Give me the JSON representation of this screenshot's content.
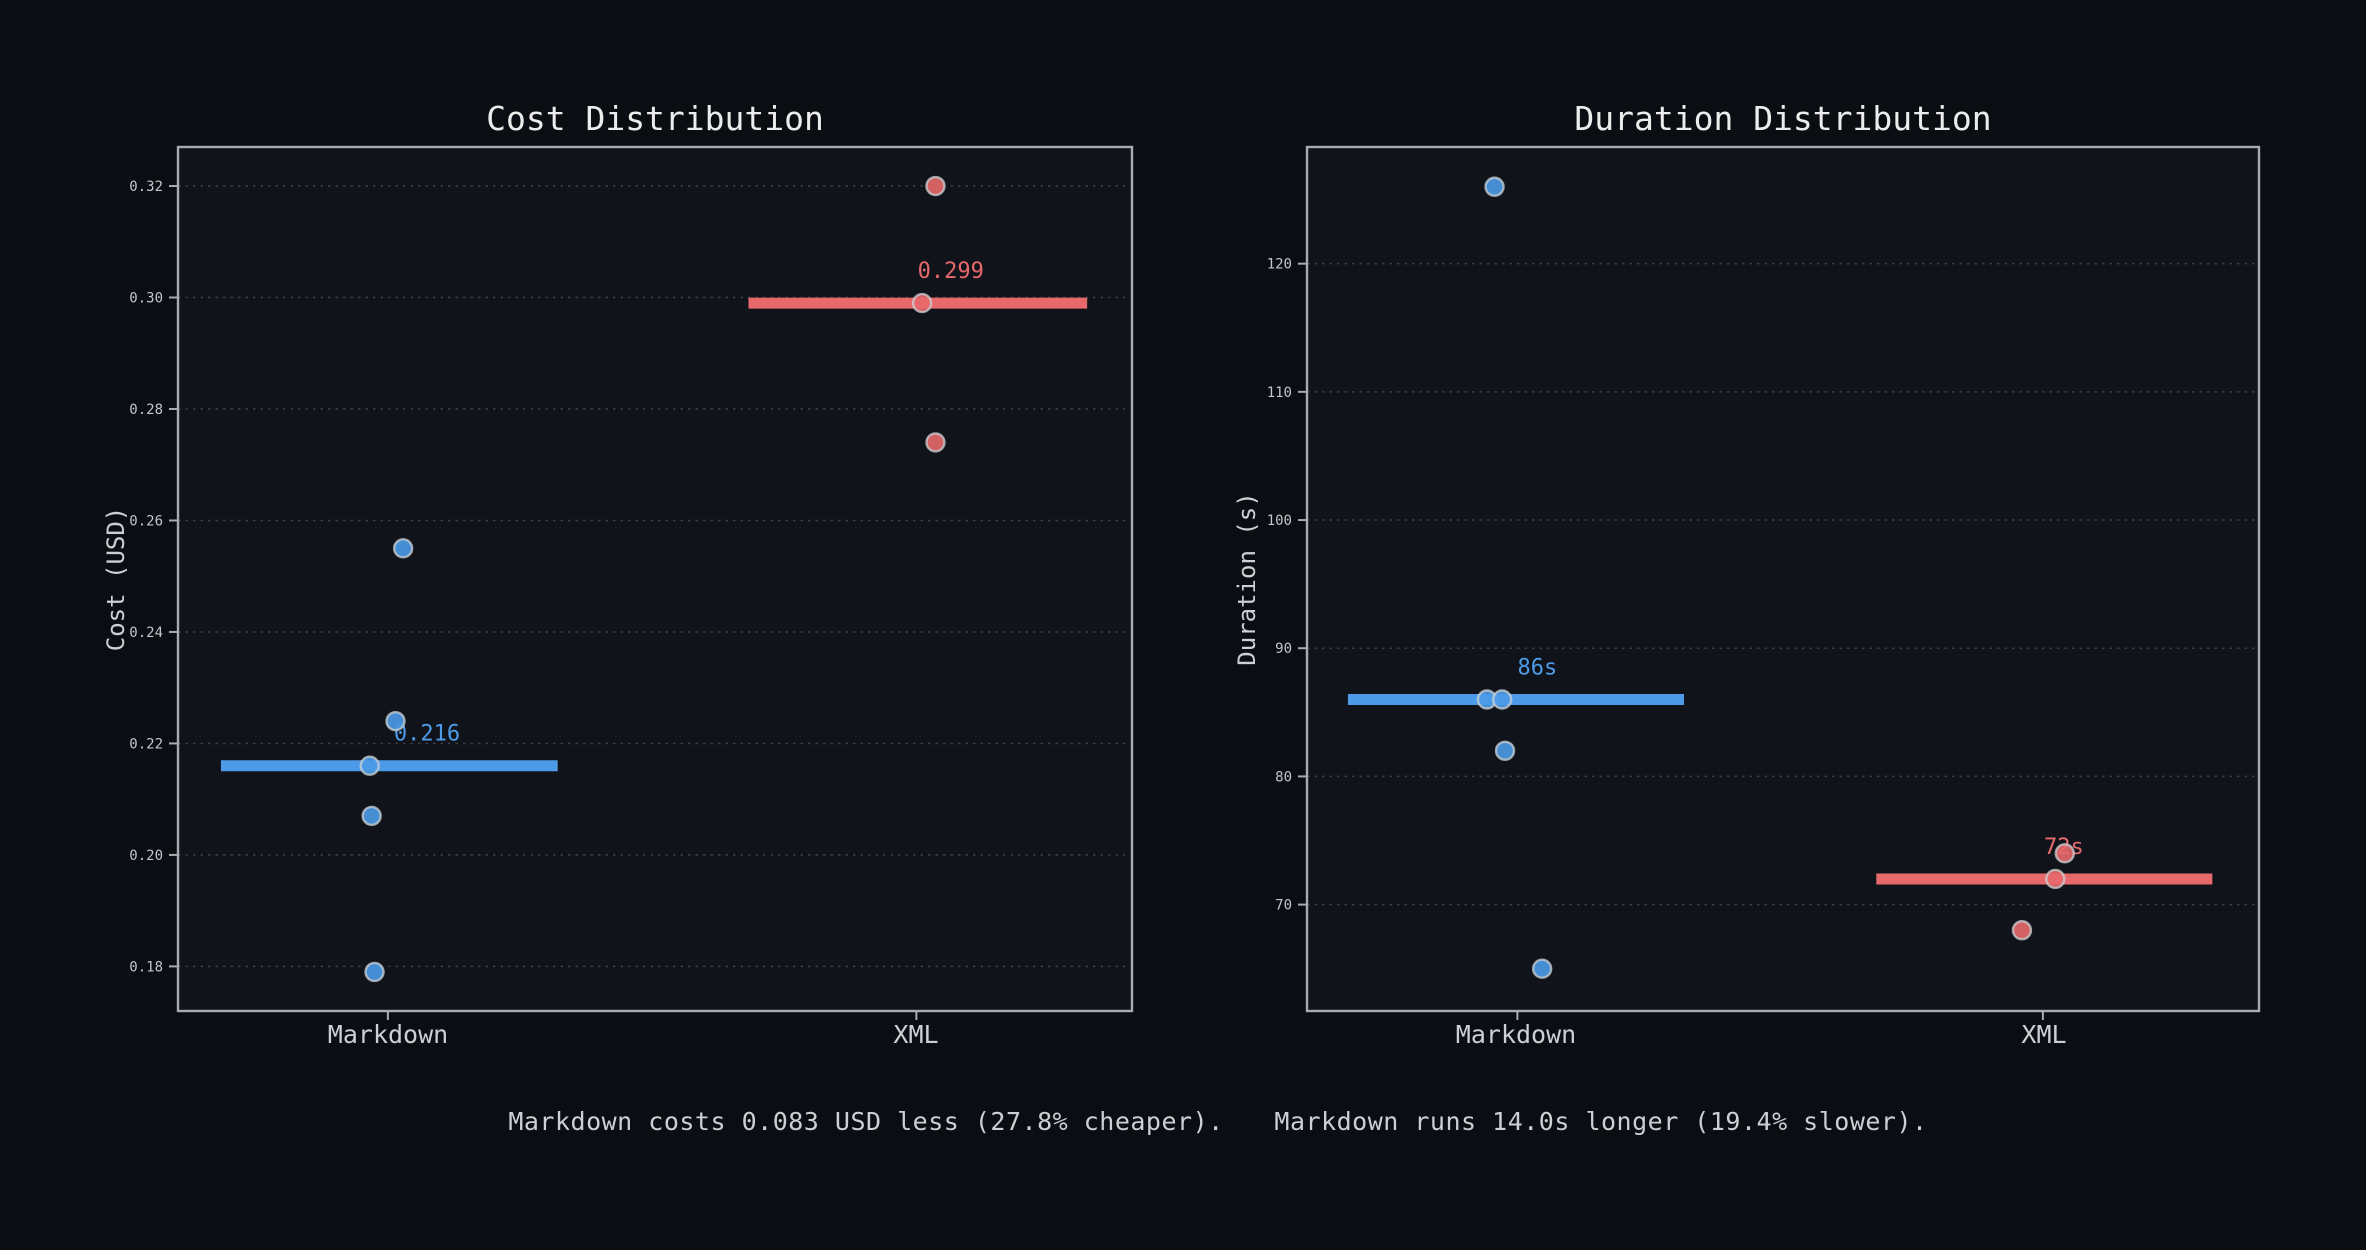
{
  "colors": {
    "background": "#0a0d12",
    "axes_background": "#10141a",
    "spine": "#a8acb0",
    "grid": "#3b4047",
    "title": "#ececec",
    "tick_label": "#c2c6ca",
    "text": "#ccd0d4",
    "markdown_blue": "#4d9be8",
    "xml_red": "#e8696c",
    "point_edge": "#ccd1d6"
  },
  "annotations": [
    {
      "text": "Markdown costs 0.083 USD less (27.8% cheaper)."
    },
    {
      "text": "Markdown runs 14.0s longer (19.4% slower)."
    }
  ],
  "chart_data": [
    {
      "type": "scatter",
      "title": "Cost Distribution",
      "ylabel": "Cost (USD)",
      "categories": [
        "Markdown",
        "XML"
      ],
      "category_x": [
        0.22,
        0.774
      ],
      "ylim": [
        0.172,
        0.327
      ],
      "grid": "dotted-horizontal",
      "yticks": [
        {
          "v": 0.18,
          "label": "0.18"
        },
        {
          "v": 0.2,
          "label": "0.20"
        },
        {
          "v": 0.22,
          "label": "0.22"
        },
        {
          "v": 0.24,
          "label": "0.24"
        },
        {
          "v": 0.26,
          "label": "0.26"
        },
        {
          "v": 0.28,
          "label": "0.28"
        },
        {
          "v": 0.3,
          "label": "0.30"
        },
        {
          "v": 0.32,
          "label": "0.32"
        }
      ],
      "series": [
        {
          "name": "Markdown",
          "color": "markdown_blue",
          "median": 0.216,
          "median_label": "0.216",
          "median_span": [
            0.045,
            0.398
          ],
          "label_x": 0.261,
          "points": [
            {
              "x": 0.236,
              "y": 0.255
            },
            {
              "x": 0.228,
              "y": 0.224
            },
            {
              "x": 0.201,
              "y": 0.216
            },
            {
              "x": 0.203,
              "y": 0.207
            },
            {
              "x": 0.206,
              "y": 0.179
            }
          ]
        },
        {
          "name": "XML",
          "color": "xml_red",
          "median": 0.299,
          "median_label": "0.299",
          "median_span": [
            0.598,
            0.953
          ],
          "label_x": 0.81,
          "points": [
            {
              "x": 0.794,
              "y": 0.32
            },
            {
              "x": 0.78,
              "y": 0.299
            },
            {
              "x": 0.794,
              "y": 0.274
            }
          ]
        }
      ]
    },
    {
      "type": "scatter",
      "title": "Duration Distribution",
      "ylabel": "Duration (s)",
      "categories": [
        "Markdown",
        "XML"
      ],
      "category_x": [
        0.221,
        0.773
      ],
      "ylim": [
        61.7,
        129.1
      ],
      "grid": "dotted-horizontal",
      "yticks": [
        {
          "v": 70,
          "label": "70"
        },
        {
          "v": 80,
          "label": "80"
        },
        {
          "v": 90,
          "label": "90"
        },
        {
          "v": 100,
          "label": "100"
        },
        {
          "v": 110,
          "label": "110"
        },
        {
          "v": 120,
          "label": "120"
        }
      ],
      "series": [
        {
          "name": "Markdown",
          "color": "markdown_blue",
          "median": 86,
          "median_label": "86s",
          "median_span": [
            0.043,
            0.396
          ],
          "label_x": 0.242,
          "points": [
            {
              "x": 0.197,
              "y": 126
            },
            {
              "x": 0.189,
              "y": 86
            },
            {
              "x": 0.205,
              "y": 86
            },
            {
              "x": 0.208,
              "y": 82
            },
            {
              "x": 0.247,
              "y": 65
            }
          ]
        },
        {
          "name": "XML",
          "color": "xml_red",
          "median": 72,
          "median_label": "72s",
          "median_span": [
            0.598,
            0.951
          ],
          "label_x": 0.795,
          "points": [
            {
              "x": 0.796,
              "y": 74
            },
            {
              "x": 0.786,
              "y": 72
            },
            {
              "x": 0.751,
              "y": 68
            }
          ]
        }
      ]
    }
  ]
}
